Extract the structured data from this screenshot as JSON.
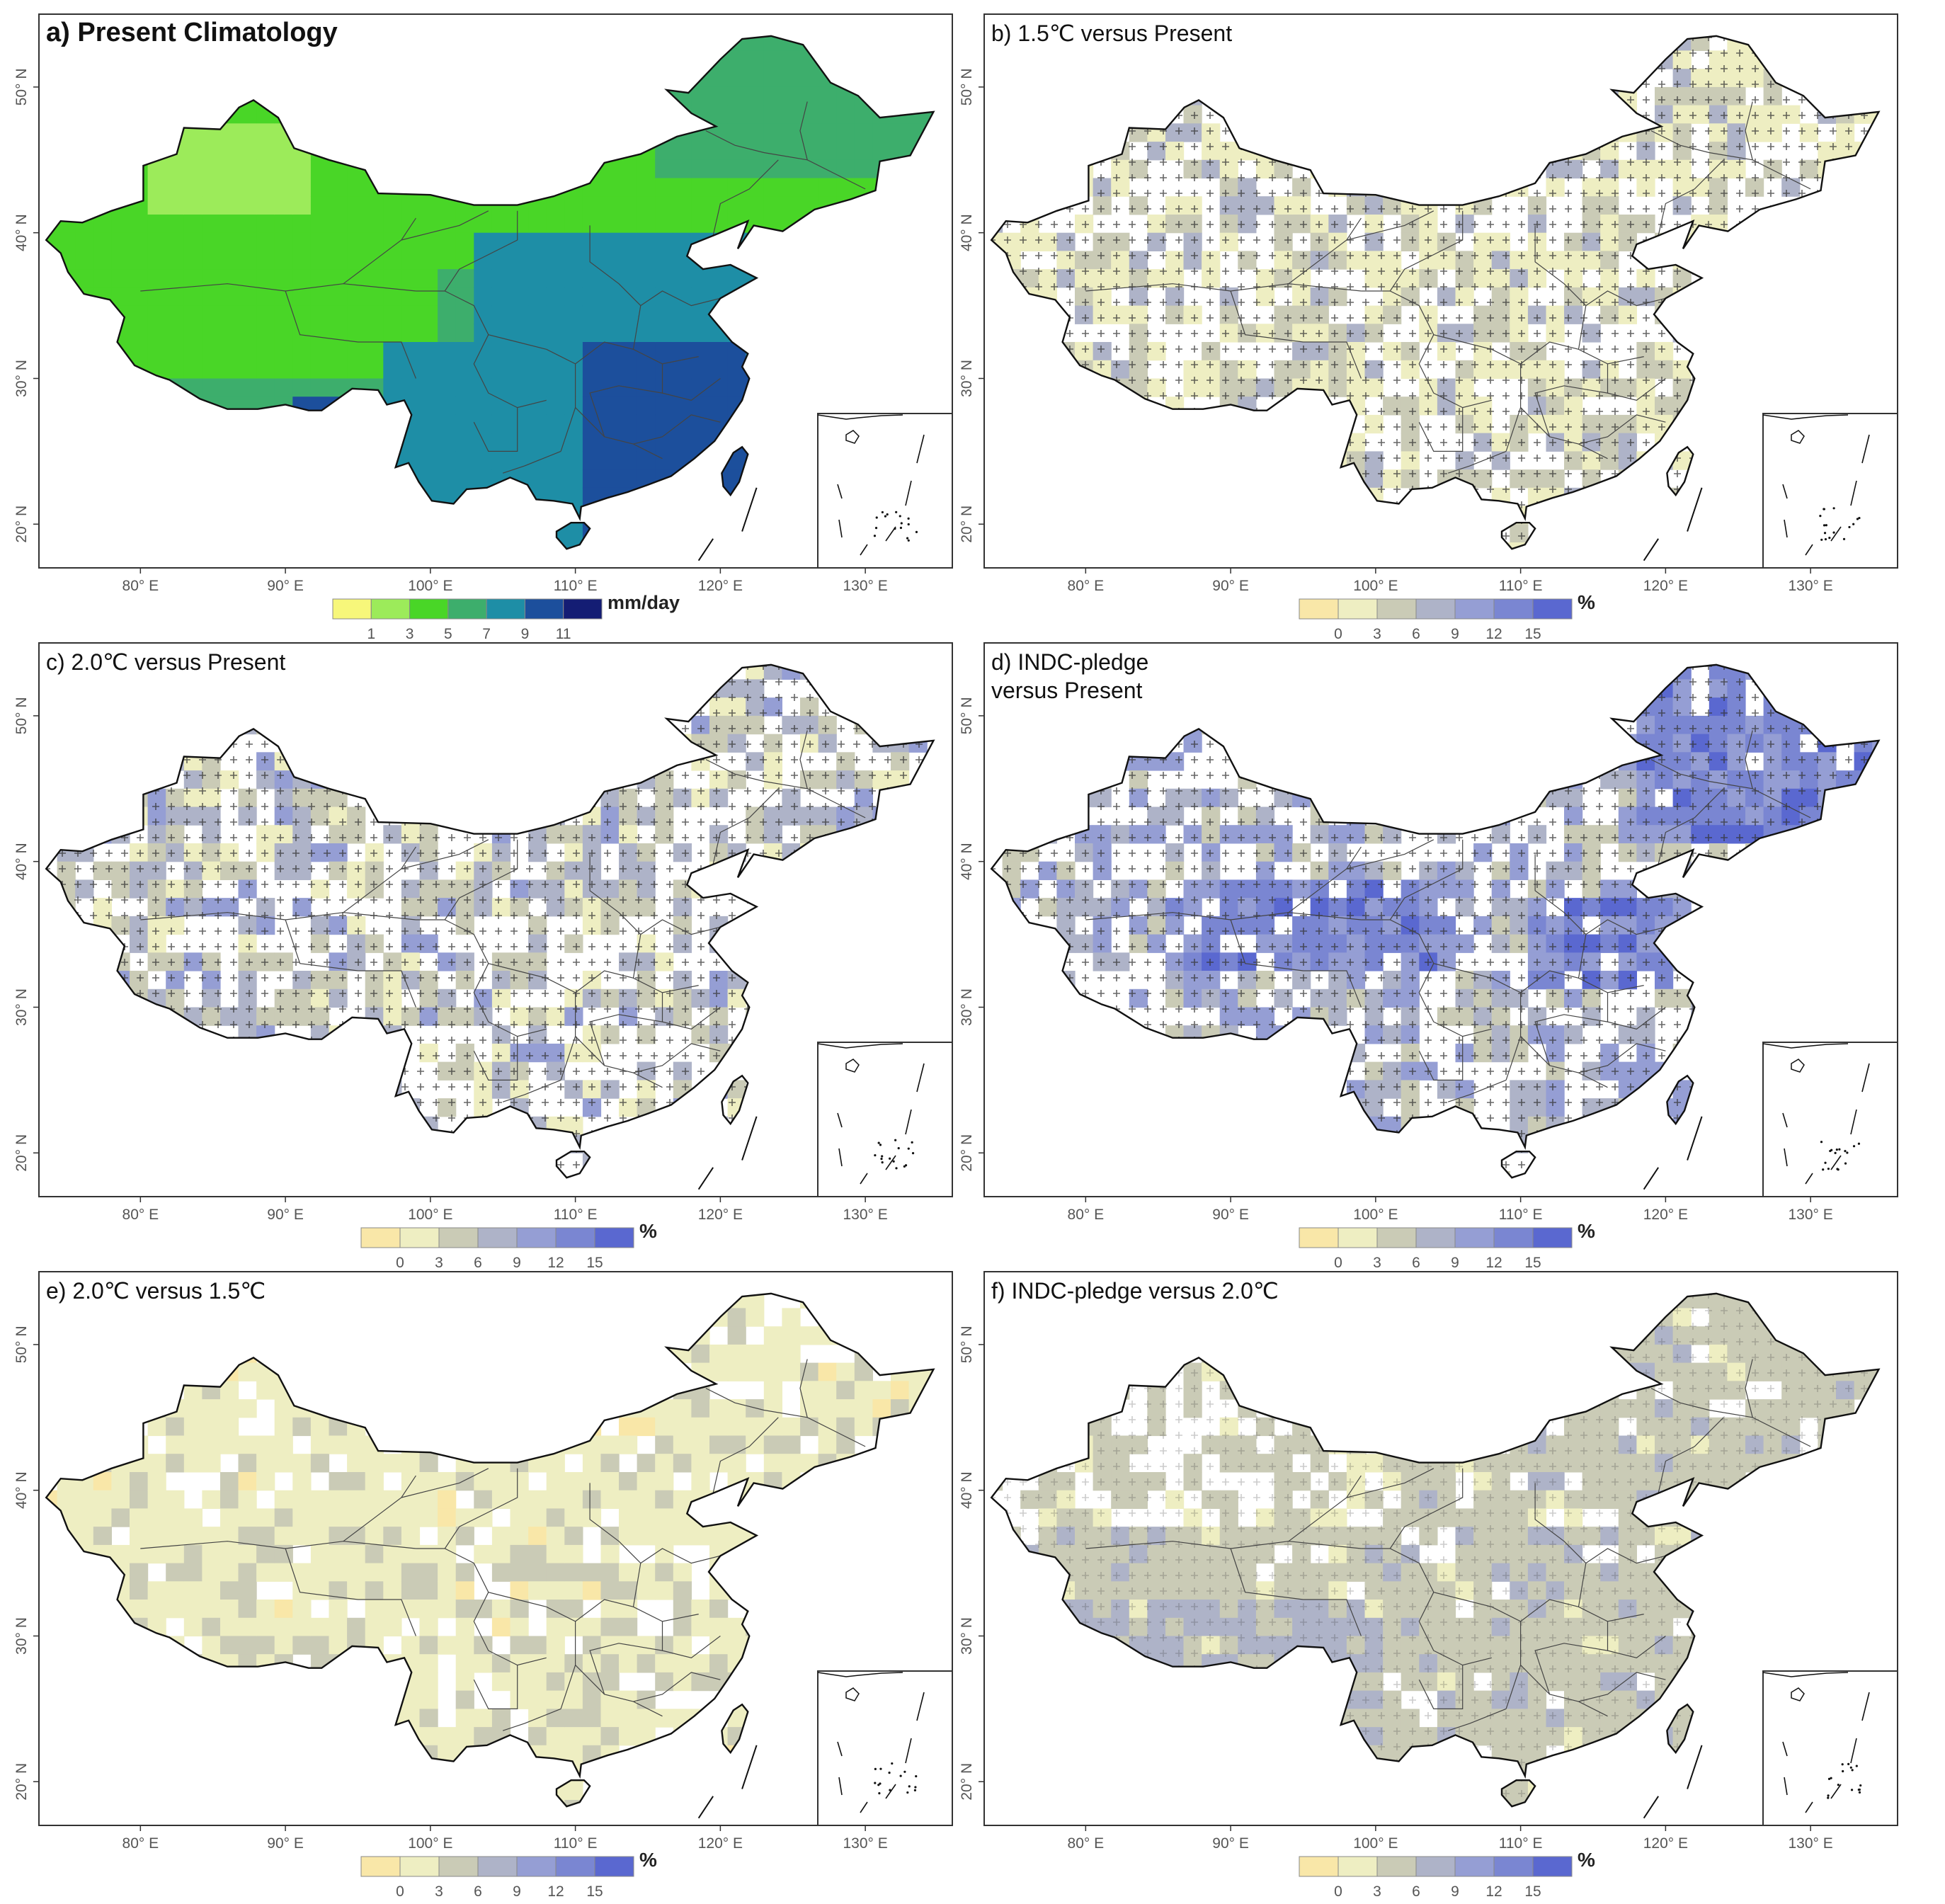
{
  "panels": [
    {
      "id": "a",
      "title": "a) Present Climatology",
      "title_bold": true,
      "unit": "mm/day",
      "colorbar_kind": "climatology",
      "x_ticks": [
        "80° E",
        "90° E",
        "100° E",
        "110° E",
        "120° E",
        "130° E"
      ],
      "y_ticks": [
        "20° N",
        "30° N",
        "40° N",
        "50° N"
      ],
      "colorbar_ticks": [
        "1",
        "3",
        "5",
        "7",
        "9",
        "11"
      ],
      "colors": [
        "#f7f77a",
        "#9ceb5a",
        "#49d627",
        "#3dae6c",
        "#1e8ea6",
        "#1c4f9c",
        "#141d74"
      ]
    },
    {
      "id": "b",
      "title": "b) 1.5℃ versus Present",
      "title_bold": false,
      "unit": "%",
      "colorbar_kind": "change",
      "x_ticks": [
        "80° E",
        "90° E",
        "100° E",
        "110° E",
        "120° E",
        "130° E"
      ],
      "y_ticks": [
        "20° N",
        "30° N",
        "40° N",
        "50° N"
      ],
      "colorbar_ticks": [
        "0",
        "3",
        "6",
        "9",
        "12",
        "15"
      ],
      "colors": [
        "#f9e7a8",
        "#eeeec2",
        "#cacbb6",
        "#aeb3c8",
        "#959ed4",
        "#7a86d2",
        "#5a68d0"
      ]
    },
    {
      "id": "c",
      "title": "c) 2.0℃ versus Present",
      "title_bold": false,
      "unit": "%",
      "colorbar_kind": "change",
      "x_ticks": [
        "80° E",
        "90° E",
        "100° E",
        "110° E",
        "120° E",
        "130° E"
      ],
      "y_ticks": [
        "20° N",
        "30° N",
        "40° N",
        "50° N"
      ],
      "colorbar_ticks": [
        "0",
        "3",
        "6",
        "9",
        "12",
        "15"
      ],
      "colors": [
        "#f9e7a8",
        "#eeeec2",
        "#cacbb6",
        "#aeb3c8",
        "#959ed4",
        "#7a86d2",
        "#5a68d0"
      ]
    },
    {
      "id": "d",
      "title": "d) INDC-pledge",
      "title_line2": "versus Present",
      "title_bold": false,
      "unit": "%",
      "colorbar_kind": "change",
      "x_ticks": [
        "80° E",
        "90° E",
        "100° E",
        "110° E",
        "120° E",
        "130° E"
      ],
      "y_ticks": [
        "20° N",
        "30° N",
        "40° N",
        "50° N"
      ],
      "colorbar_ticks": [
        "0",
        "3",
        "6",
        "9",
        "12",
        "15"
      ],
      "colors": [
        "#f9e7a8",
        "#eeeec2",
        "#cacbb6",
        "#aeb3c8",
        "#959ed4",
        "#7a86d2",
        "#5a68d0"
      ]
    },
    {
      "id": "e",
      "title": "e) 2.0℃ versus 1.5℃",
      "title_bold": false,
      "unit": "%",
      "colorbar_kind": "change",
      "x_ticks": [
        "80° E",
        "90° E",
        "100° E",
        "110° E",
        "120° E",
        "130° E"
      ],
      "y_ticks": [
        "20° N",
        "30° N",
        "40° N",
        "50° N"
      ],
      "colorbar_ticks": [
        "0",
        "3",
        "6",
        "9",
        "12",
        "15"
      ],
      "colors": [
        "#f9e7a8",
        "#eeeec2",
        "#cacbb6",
        "#aeb3c8",
        "#959ed4",
        "#7a86d2",
        "#5a68d0"
      ]
    },
    {
      "id": "f",
      "title": "f) INDC-pledge versus 2.0℃",
      "title_bold": false,
      "unit": "%",
      "colorbar_kind": "change",
      "x_ticks": [
        "80° E",
        "90° E",
        "100° E",
        "110° E",
        "120° E",
        "130° E"
      ],
      "y_ticks": [
        "20° N",
        "30° N",
        "40° N",
        "50° N"
      ],
      "colorbar_ticks": [
        "0",
        "3",
        "6",
        "9",
        "12",
        "15"
      ],
      "colors": [
        "#f9e7a8",
        "#eeeec2",
        "#cacbb6",
        "#aeb3c8",
        "#959ed4",
        "#7a86d2",
        "#5a68d0"
      ]
    }
  ],
  "map": {
    "lon_range": [
      73,
      136
    ],
    "lat_range": [
      17,
      55
    ],
    "x_tick_values": [
      80,
      90,
      100,
      110,
      120,
      130
    ],
    "y_tick_values": [
      20,
      30,
      40,
      50
    ],
    "inset": "South China Sea islands"
  }
}
